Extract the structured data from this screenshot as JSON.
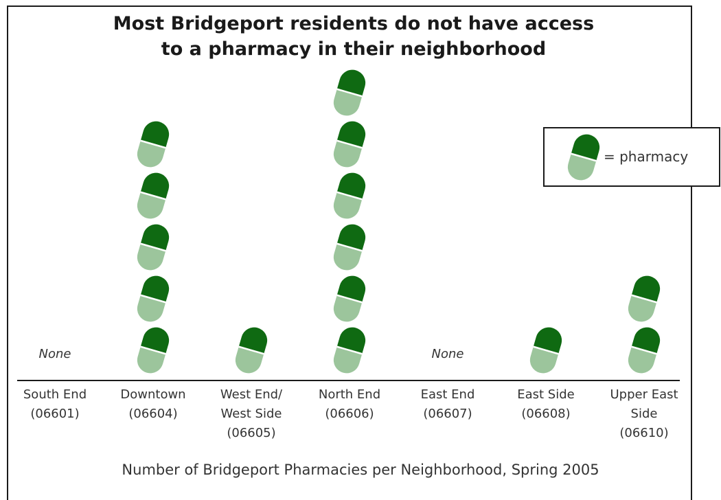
{
  "chart_data": {
    "type": "pictograph",
    "title": [
      "Most Bridgeport residents do not have access",
      "to a pharmacy in their neighborhood"
    ],
    "xlabel": "Number of Bridgeport Pharmacies per Neighborhood, Spring 2005",
    "categories": [
      "South End\n(06601)",
      "Downtown\n(06604)",
      "West End/\nWest Side\n(06605)",
      "North End\n(06606)",
      "East End\n(06607)",
      "East Side\n(06608)",
      "Upper East\nSide\n(06610)"
    ],
    "values": [
      0,
      5,
      1,
      6,
      0,
      1,
      2
    ],
    "zero_label": "None",
    "legend": {
      "symbol": "pill-icon",
      "label": "= pharmacy",
      "placement": "top-right"
    },
    "colors": {
      "pill_top": "#0f6a12",
      "pill_bottom": "#9cc59c",
      "pill_stripe": "#ffffff"
    }
  }
}
